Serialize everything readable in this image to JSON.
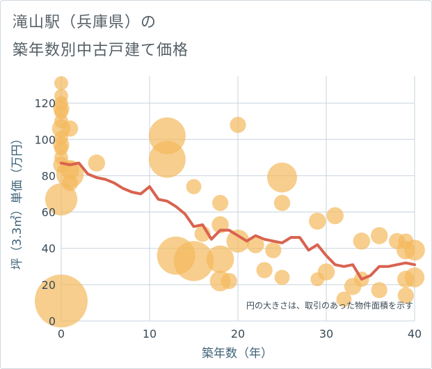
{
  "chart_data": {
    "type": "scatter",
    "title": [
      "滝山駅（兵庫県）の",
      "築年数別中古戸建て価格"
    ],
    "xlabel": "築年数（年）",
    "ylabel": "坪（3.3㎡）単価（万円）",
    "xlim": [
      0,
      40
    ],
    "ylim": [
      0,
      135
    ],
    "xticks": [
      0,
      10,
      20,
      30,
      40
    ],
    "yticks": [
      0,
      20,
      40,
      60,
      80,
      100,
      120
    ],
    "note": "円の大きさは、取引のあった物件面積を示す",
    "colors": {
      "bubble": "#f3b95c",
      "line": "#d9634f",
      "grid": "#c8d3dc",
      "text": "#3a4a57"
    },
    "scatter": [
      {
        "x": 0,
        "y": 131,
        "s": 0.15
      },
      {
        "x": 0,
        "y": 124,
        "s": 0.15
      },
      {
        "x": 0,
        "y": 120,
        "s": 0.15
      },
      {
        "x": 0,
        "y": 117,
        "s": 0.2
      },
      {
        "x": 0,
        "y": 115,
        "s": 0.15
      },
      {
        "x": 0,
        "y": 110,
        "s": 0.15
      },
      {
        "x": 0,
        "y": 106,
        "s": 0.25
      },
      {
        "x": 0,
        "y": 101,
        "s": 0.15
      },
      {
        "x": 0,
        "y": 97,
        "s": 0.2
      },
      {
        "x": 0,
        "y": 95,
        "s": 0.15
      },
      {
        "x": 0,
        "y": 90,
        "s": 0.15
      },
      {
        "x": 0,
        "y": 86,
        "s": 0.2
      },
      {
        "x": 0,
        "y": 67,
        "s": 0.55
      },
      {
        "x": 0,
        "y": 11,
        "s": 1.0
      },
      {
        "x": 1,
        "y": 106,
        "s": 0.2
      },
      {
        "x": 1,
        "y": 83,
        "s": 0.25
      },
      {
        "x": 1,
        "y": 81,
        "s": 0.45
      },
      {
        "x": 1,
        "y": 76,
        "s": 0.2
      },
      {
        "x": 4,
        "y": 87,
        "s": 0.22
      },
      {
        "x": 12,
        "y": 102,
        "s": 0.65
      },
      {
        "x": 12,
        "y": 89,
        "s": 0.65
      },
      {
        "x": 13,
        "y": 36,
        "s": 0.68
      },
      {
        "x": 15,
        "y": 33,
        "s": 0.72
      },
      {
        "x": 15,
        "y": 74,
        "s": 0.18
      },
      {
        "x": 16,
        "y": 48,
        "s": 0.2
      },
      {
        "x": 18,
        "y": 65,
        "s": 0.2
      },
      {
        "x": 18,
        "y": 53,
        "s": 0.22
      },
      {
        "x": 18,
        "y": 34,
        "s": 0.45
      },
      {
        "x": 18,
        "y": 22,
        "s": 0.3
      },
      {
        "x": 19,
        "y": 22,
        "s": 0.2
      },
      {
        "x": 20,
        "y": 108,
        "s": 0.2
      },
      {
        "x": 20,
        "y": 44,
        "s": 0.35
      },
      {
        "x": 22,
        "y": 42,
        "s": 0.22
      },
      {
        "x": 23,
        "y": 28,
        "s": 0.2
      },
      {
        "x": 24,
        "y": 39,
        "s": 0.2
      },
      {
        "x": 25,
        "y": 79,
        "s": 0.5
      },
      {
        "x": 25,
        "y": 65,
        "s": 0.2
      },
      {
        "x": 25,
        "y": 24,
        "s": 0.18
      },
      {
        "x": 29,
        "y": 55,
        "s": 0.22
      },
      {
        "x": 29,
        "y": 23,
        "s": 0.15
      },
      {
        "x": 30,
        "y": 27,
        "s": 0.22
      },
      {
        "x": 31,
        "y": 58,
        "s": 0.22
      },
      {
        "x": 32,
        "y": 12,
        "s": 0.18
      },
      {
        "x": 33,
        "y": 19,
        "s": 0.22
      },
      {
        "x": 34,
        "y": 44,
        "s": 0.22
      },
      {
        "x": 34,
        "y": 23,
        "s": 0.18
      },
      {
        "x": 36,
        "y": 47,
        "s": 0.22
      },
      {
        "x": 36,
        "y": 17,
        "s": 0.2
      },
      {
        "x": 38,
        "y": 44,
        "s": 0.2
      },
      {
        "x": 39,
        "y": 44,
        "s": 0.18
      },
      {
        "x": 39,
        "y": 39,
        "s": 0.25
      },
      {
        "x": 39,
        "y": 23,
        "s": 0.22
      },
      {
        "x": 39,
        "y": 14,
        "s": 0.2
      },
      {
        "x": 40,
        "y": 39,
        "s": 0.3
      },
      {
        "x": 40,
        "y": 24,
        "s": 0.28
      }
    ],
    "line": {
      "x": [
        0,
        1,
        2,
        3,
        4,
        5,
        6,
        7,
        8,
        9,
        10,
        11,
        12,
        13,
        14,
        15,
        16,
        17,
        18,
        19,
        20,
        21,
        22,
        23,
        24,
        25,
        26,
        27,
        28,
        29,
        30,
        31,
        32,
        33,
        34,
        35,
        36,
        37,
        38,
        39,
        40
      ],
      "y": [
        87,
        86,
        87,
        81,
        79,
        78,
        76,
        73,
        71,
        70,
        74,
        67,
        66,
        63,
        59,
        52,
        53,
        45,
        50,
        50,
        47,
        44,
        47,
        45,
        44,
        43,
        46,
        46,
        39,
        42,
        36,
        31,
        30,
        31,
        23,
        25,
        30,
        30,
        31,
        32,
        31
      ]
    }
  }
}
